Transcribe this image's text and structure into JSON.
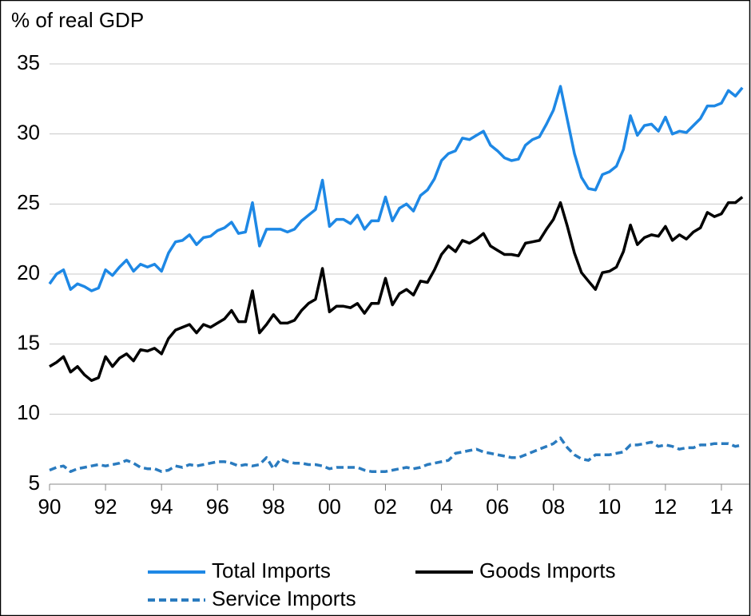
{
  "chart_data": {
    "type": "line",
    "y_label": "% of real GDP",
    "x": [
      1990,
      1990.25,
      1990.5,
      1990.75,
      1991,
      1991.25,
      1991.5,
      1991.75,
      1992,
      1992.25,
      1992.5,
      1992.75,
      1993,
      1993.25,
      1993.5,
      1993.75,
      1994,
      1994.25,
      1994.5,
      1994.75,
      1995,
      1995.25,
      1995.5,
      1995.75,
      1996,
      1996.25,
      1996.5,
      1996.75,
      1997,
      1997.25,
      1997.5,
      1997.75,
      1998,
      1998.25,
      1998.5,
      1998.75,
      1999,
      1999.25,
      1999.5,
      1999.75,
      2000,
      2000.25,
      2000.5,
      2000.75,
      2001,
      2001.25,
      2001.5,
      2001.75,
      2002,
      2002.25,
      2002.5,
      2002.75,
      2003,
      2003.25,
      2003.5,
      2003.75,
      2004,
      2004.25,
      2004.5,
      2004.75,
      2005,
      2005.25,
      2005.5,
      2005.75,
      2006,
      2006.25,
      2006.5,
      2006.75,
      2007,
      2007.25,
      2007.5,
      2007.75,
      2008,
      2008.25,
      2008.5,
      2008.75,
      2009,
      2009.25,
      2009.5,
      2009.75,
      2010,
      2010.25,
      2010.5,
      2010.75,
      2011,
      2011.25,
      2011.5,
      2011.75,
      2012,
      2012.25,
      2012.5,
      2012.75,
      2013,
      2013.25,
      2013.5,
      2013.75,
      2014,
      2014.25,
      2014.5,
      2014.75
    ],
    "series": [
      {
        "name": "Total Imports",
        "color": "#1e88e5",
        "dash": false,
        "values": [
          19.3,
          20.0,
          20.3,
          18.9,
          19.3,
          19.1,
          18.8,
          19.0,
          20.3,
          19.9,
          20.5,
          21.0,
          20.2,
          20.7,
          20.5,
          20.7,
          20.2,
          21.5,
          22.3,
          22.4,
          22.8,
          22.1,
          22.6,
          22.7,
          23.1,
          23.3,
          23.7,
          22.9,
          23.0,
          25.1,
          22.0,
          23.2,
          23.2,
          23.2,
          23.0,
          23.2,
          23.8,
          24.2,
          24.6,
          26.7,
          23.4,
          23.9,
          23.9,
          23.6,
          24.2,
          23.2,
          23.8,
          23.8,
          25.5,
          23.8,
          24.7,
          25.0,
          24.5,
          25.6,
          26.0,
          26.8,
          28.1,
          28.6,
          28.8,
          29.7,
          29.6,
          29.9,
          30.2,
          29.2,
          28.8,
          28.3,
          28.1,
          28.2,
          29.2,
          29.6,
          29.8,
          30.7,
          31.7,
          33.4,
          31.0,
          28.6,
          26.9,
          26.1,
          26.0,
          27.1,
          27.3,
          27.7,
          28.9,
          31.3,
          29.9,
          30.6,
          30.7,
          30.2,
          31.2,
          30.0,
          30.2,
          30.1,
          30.6,
          31.1,
          32.0,
          32.0,
          32.2,
          33.1,
          32.7,
          33.3
        ]
      },
      {
        "name": "Goods Imports",
        "color": "#000000",
        "dash": false,
        "values": [
          13.4,
          13.7,
          14.1,
          13.0,
          13.4,
          12.8,
          12.4,
          12.6,
          14.1,
          13.4,
          14.0,
          14.3,
          13.8,
          14.6,
          14.5,
          14.7,
          14.3,
          15.4,
          16.0,
          16.2,
          16.4,
          15.8,
          16.4,
          16.2,
          16.5,
          16.8,
          17.4,
          16.6,
          16.6,
          18.8,
          15.8,
          16.4,
          17.1,
          16.5,
          16.5,
          16.7,
          17.4,
          17.9,
          18.2,
          20.4,
          17.3,
          17.7,
          17.7,
          17.6,
          17.9,
          17.2,
          17.9,
          17.9,
          19.7,
          17.8,
          18.6,
          18.9,
          18.5,
          19.5,
          19.4,
          20.3,
          21.4,
          22.0,
          21.6,
          22.4,
          22.2,
          22.5,
          22.9,
          22.0,
          21.7,
          21.4,
          21.4,
          21.3,
          22.2,
          22.3,
          22.4,
          23.2,
          23.9,
          25.1,
          23.4,
          21.5,
          20.1,
          19.5,
          18.9,
          20.1,
          20.2,
          20.5,
          21.6,
          23.5,
          22.1,
          22.6,
          22.8,
          22.7,
          23.4,
          22.4,
          22.8,
          22.5,
          23.0,
          23.3,
          24.4,
          24.1,
          24.3,
          25.1,
          25.1,
          25.5
        ]
      },
      {
        "name": "Service Imports",
        "color": "#2a7bbf",
        "dash": true,
        "values": [
          6.0,
          6.2,
          6.3,
          5.9,
          6.1,
          6.2,
          6.3,
          6.4,
          6.3,
          6.4,
          6.5,
          6.7,
          6.5,
          6.2,
          6.1,
          6.1,
          5.9,
          6.0,
          6.3,
          6.2,
          6.4,
          6.3,
          6.4,
          6.5,
          6.6,
          6.6,
          6.5,
          6.3,
          6.4,
          6.3,
          6.4,
          6.9,
          6.1,
          6.8,
          6.6,
          6.5,
          6.5,
          6.4,
          6.4,
          6.3,
          6.1,
          6.2,
          6.2,
          6.2,
          6.2,
          6.0,
          5.9,
          5.9,
          5.9,
          6.0,
          6.1,
          6.2,
          6.1,
          6.2,
          6.4,
          6.5,
          6.6,
          6.7,
          7.2,
          7.3,
          7.4,
          7.5,
          7.3,
          7.2,
          7.1,
          7.0,
          6.9,
          6.9,
          7.1,
          7.3,
          7.5,
          7.7,
          7.9,
          8.3,
          7.6,
          7.1,
          6.8,
          6.7,
          7.1,
          7.1,
          7.1,
          7.2,
          7.3,
          7.8,
          7.8,
          7.9,
          8.0,
          7.7,
          7.8,
          7.7,
          7.5,
          7.6,
          7.6,
          7.8,
          7.8,
          7.9,
          7.9,
          7.9,
          7.7,
          7.8
        ]
      }
    ],
    "xlim": [
      1990,
      2015
    ],
    "xticks": [
      {
        "value": 1990,
        "label": "90"
      },
      {
        "value": 1992,
        "label": "92"
      },
      {
        "value": 1994,
        "label": "94"
      },
      {
        "value": 1996,
        "label": "96"
      },
      {
        "value": 1998,
        "label": "98"
      },
      {
        "value": 2000,
        "label": "00"
      },
      {
        "value": 2002,
        "label": "02"
      },
      {
        "value": 2004,
        "label": "04"
      },
      {
        "value": 2006,
        "label": "06"
      },
      {
        "value": 2008,
        "label": "08"
      },
      {
        "value": 2010,
        "label": "10"
      },
      {
        "value": 2012,
        "label": "12"
      },
      {
        "value": 2014,
        "label": "14"
      }
    ],
    "ylim": [
      5,
      35
    ],
    "yticks": [
      5,
      10,
      15,
      20,
      25,
      30,
      35
    ],
    "grid": true,
    "legend": "bottom"
  }
}
